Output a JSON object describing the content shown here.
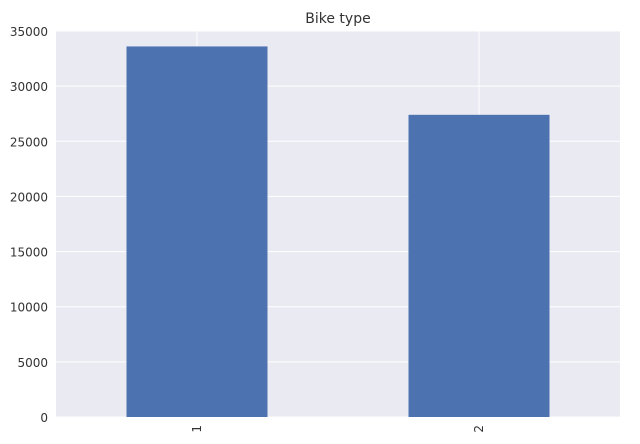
{
  "chart_data": {
    "type": "bar",
    "title": "Bike type",
    "categories": [
      "1",
      "2"
    ],
    "values": [
      33600,
      27400
    ],
    "xlabel": "",
    "ylabel": "",
    "ylim": [
      0,
      35000
    ],
    "yticks": [
      "0",
      "5000",
      "10000",
      "15000",
      "20000",
      "25000",
      "30000",
      "35000"
    ],
    "grid": true,
    "bar_color": "#4c72b0",
    "background_color": "#eaeaf2"
  }
}
